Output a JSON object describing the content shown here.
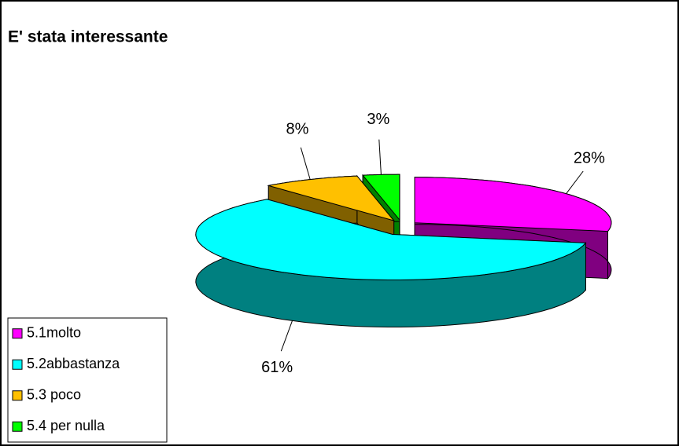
{
  "chart_data": {
    "type": "pie3d",
    "title": "E' stata interessante",
    "categories": [
      "5.1molto",
      "5.2abbastanza",
      "5.3 poco",
      "5.4 per nulla"
    ],
    "values": [
      28,
      61,
      8,
      3
    ],
    "value_labels": [
      "28%",
      "61%",
      "8%",
      "3%"
    ],
    "colors": [
      "#ff00ff",
      "#00ffff",
      "#ffc000",
      "#00ff00"
    ],
    "side_colors": [
      "#800080",
      "#008080",
      "#806000",
      "#008000"
    ],
    "legend": "bottom-left"
  }
}
